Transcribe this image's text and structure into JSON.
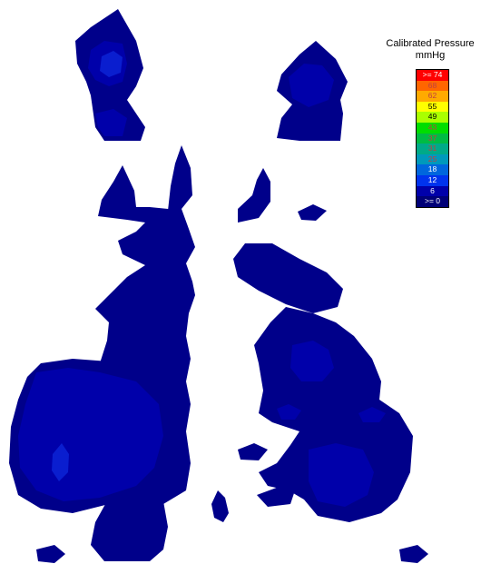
{
  "legend": {
    "title": "Calibrated Pressure",
    "unit": "mmHg",
    "levels": [
      {
        "label": ">= 74",
        "color": "#ff0000",
        "text_color": "#ffffff"
      },
      {
        "label": "68",
        "color": "#ff6600",
        "text_color": "#c04040"
      },
      {
        "label": "62",
        "color": "#ffaa00",
        "text_color": "#c04040"
      },
      {
        "label": "55",
        "color": "#ffff00",
        "text_color": "#000000"
      },
      {
        "label": "49",
        "color": "#aaff00",
        "text_color": "#000000"
      },
      {
        "label": "43",
        "color": "#00dd00",
        "text_color": "#c04040"
      },
      {
        "label": "37",
        "color": "#00bb44",
        "text_color": "#c04040"
      },
      {
        "label": "31",
        "color": "#00aa88",
        "text_color": "#c04040"
      },
      {
        "label": "25",
        "color": "#0099bb",
        "text_color": "#c04040"
      },
      {
        "label": "18",
        "color": "#0066dd",
        "text_color": "#ffffff"
      },
      {
        "label": "12",
        "color": "#0033ee",
        "text_color": "#ffffff"
      },
      {
        "label": "6",
        "color": "#0000aa",
        "text_color": "#ffffff"
      },
      {
        "label": ">= 0",
        "color": "#000077",
        "text_color": "#ffffff"
      }
    ]
  },
  "colors": {
    "level_0": "#00008a",
    "level_6": "#0000aa",
    "level_12": "#0a1ecf",
    "background": "#ffffff"
  }
}
